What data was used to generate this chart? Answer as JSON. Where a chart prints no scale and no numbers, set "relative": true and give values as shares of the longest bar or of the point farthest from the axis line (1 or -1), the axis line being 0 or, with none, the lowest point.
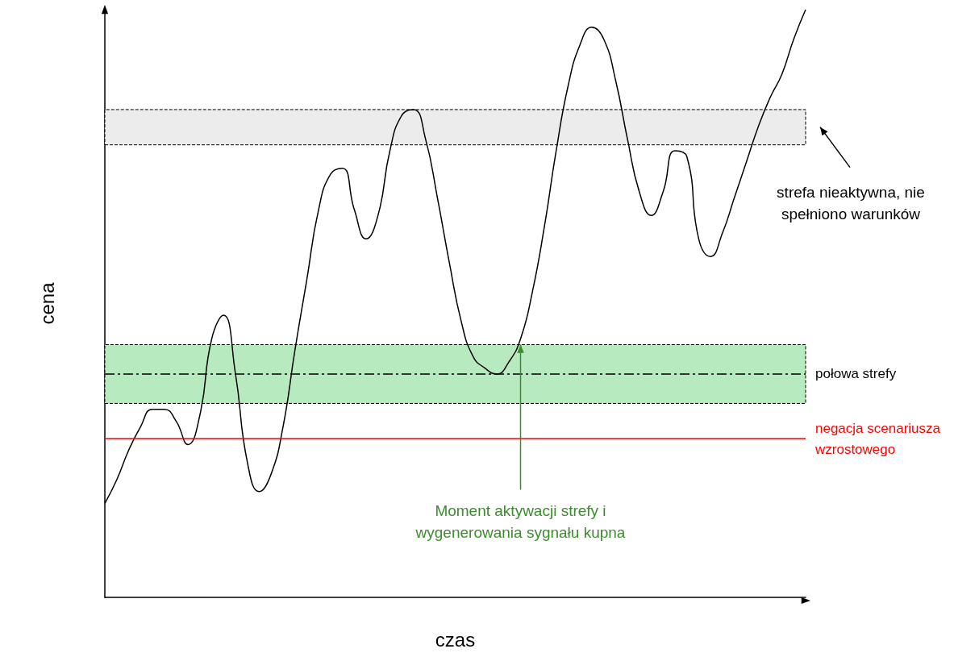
{
  "chart_data": {
    "type": "line",
    "relative": true,
    "xlabel": "czas",
    "ylabel": "cena",
    "categories": [
      null,
      null,
      null,
      null,
      null,
      null,
      null,
      null,
      null,
      null,
      null,
      null,
      null,
      null,
      null,
      null,
      null,
      null,
      null,
      null,
      null,
      null,
      null,
      null,
      null,
      null,
      null,
      null,
      null,
      null,
      null,
      null,
      null,
      null,
      null,
      null,
      null,
      null,
      null,
      null,
      null,
      null,
      null,
      null,
      null,
      null,
      null,
      null,
      null,
      null,
      null,
      null,
      null,
      null,
      null,
      null,
      null,
      null,
      null,
      null
    ],
    "series": [
      {
        "color": "#000000",
        "values": [
          0.16,
          0.2,
          0.25,
          0.29,
          0.32,
          0.32,
          0.3,
          0.26,
          0.31,
          0.44,
          0.48,
          0.38,
          0.23,
          0.18,
          0.21,
          0.29,
          0.42,
          0.54,
          0.66,
          0.72,
          0.73,
          0.66,
          0.61,
          0.65,
          0.76,
          0.82,
          0.83,
          0.78,
          0.68,
          0.57,
          0.47,
          0.41,
          0.39,
          0.38,
          0.4,
          0.44,
          0.52,
          0.63,
          0.76,
          0.87,
          0.94,
          0.97,
          0.95,
          0.88,
          0.78,
          0.69,
          0.65,
          0.69,
          0.76,
          0.75,
          0.61,
          0.58,
          0.62,
          0.68,
          0.74,
          0.8,
          0.85,
          0.89,
          0.95,
          1
        ]
      }
    ],
    "bands": [
      {
        "axis": "y",
        "from": 0.33,
        "to": 0.43,
        "color": "#b7eabf"
      },
      {
        "axis": "y",
        "from": 0.77,
        "to": 0.83,
        "color": "#ececec"
      }
    ],
    "ref_lines": [
      {
        "axis": "y",
        "value": 0.38,
        "label": "połowa strefy",
        "color": "#000000",
        "line_style": "dashed"
      },
      {
        "axis": "y",
        "value": 0.27,
        "label": "negacja scenariusza wzrostowego",
        "color": "#ff0000",
        "line_style": "solid"
      }
    ],
    "annotations": [
      "strefa nieaktywna, nie spełniono warunków",
      "Moment aktywacji strefy i wygenerowania sygnału kupna"
    ],
    "line_style": "solid"
  }
}
